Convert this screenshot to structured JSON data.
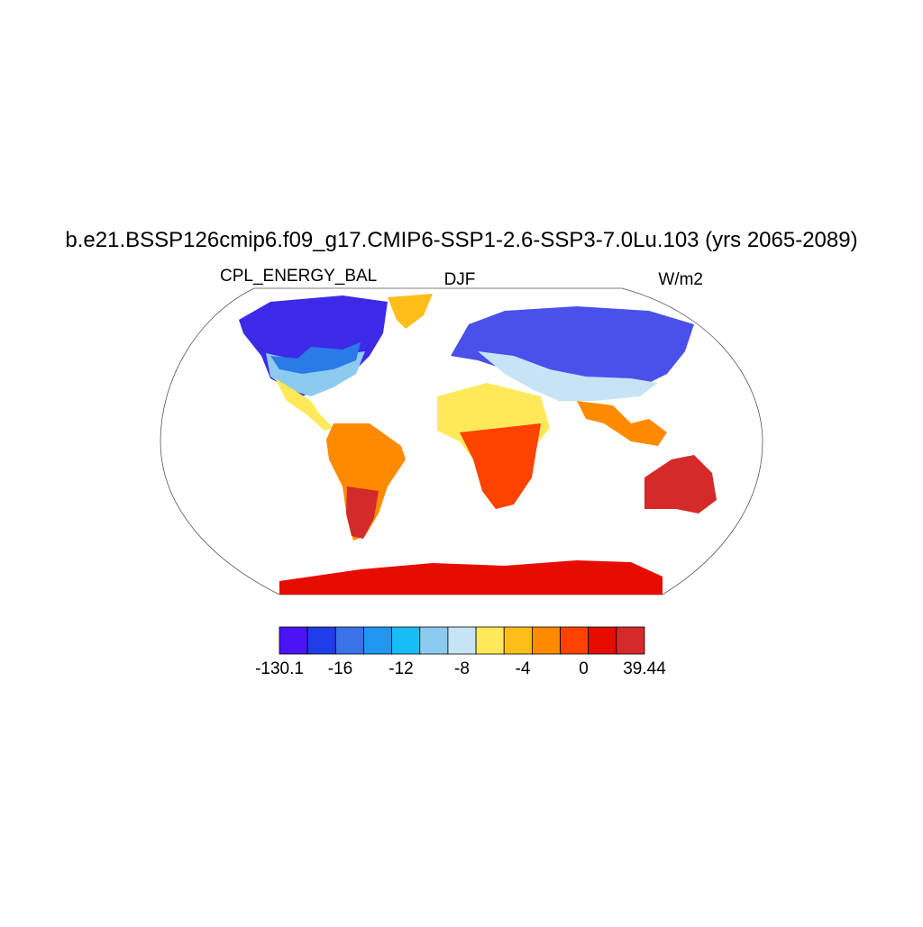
{
  "title": "b.e21.BSSP126cmip6.f09_g17.CMIP6-SSP1-2.6-SSP3-7.0Lu.103 (yrs 2065-2089)",
  "left_string": "CPL_ENERGY_BAL",
  "center_string": "DJF",
  "right_string": "W/m2",
  "colorbar": {
    "colors": [
      "#4a14f5",
      "#1f3de8",
      "#3a73e8",
      "#2196f3",
      "#18bdf5",
      "#8ccbef",
      "#c7e4f7",
      "#ffe95a",
      "#ffbd1a",
      "#ff8a00",
      "#ff4200",
      "#e60d00",
      "#d42a2a"
    ],
    "labels": [
      -130.1,
      -16,
      -12,
      -8,
      -4,
      0,
      39.44
    ]
  }
}
